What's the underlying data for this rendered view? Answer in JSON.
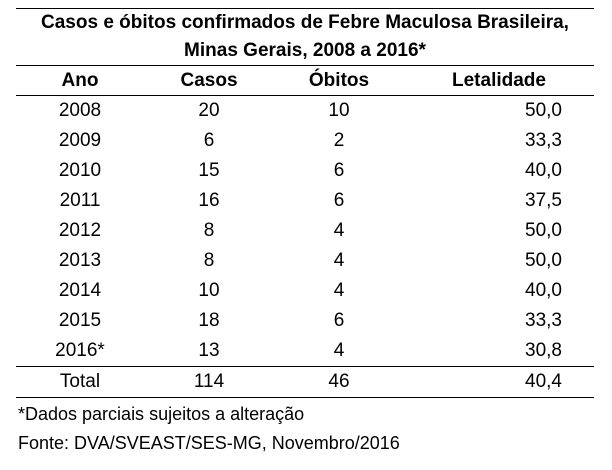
{
  "title": {
    "line1": "Casos e óbitos confirmados de Febre Maculosa Brasileira,",
    "line2": "Minas Gerais, 2008 a 2016*"
  },
  "table": {
    "headers": [
      "Ano",
      "Casos",
      "Óbitos",
      "Letalidade"
    ],
    "rows": [
      [
        "2008",
        "20",
        "10",
        "50,0"
      ],
      [
        "2009",
        "6",
        "2",
        "33,3"
      ],
      [
        "2010",
        "15",
        "6",
        "40,0"
      ],
      [
        "2011",
        "16",
        "6",
        "37,5"
      ],
      [
        "2012",
        "8",
        "4",
        "50,0"
      ],
      [
        "2013",
        "8",
        "4",
        "50,0"
      ],
      [
        "2014",
        "10",
        "4",
        "40,0"
      ],
      [
        "2015",
        "18",
        "6",
        "33,3"
      ],
      [
        "2016*",
        "13",
        "4",
        "30,8"
      ]
    ],
    "total": [
      "Total",
      "114",
      "46",
      "40,4"
    ]
  },
  "notes": {
    "footnote": "*Dados parciais sujeitos a alteração",
    "source": "Fonte: DVA/SVEAST/SES-MG, Novembro/2016"
  }
}
